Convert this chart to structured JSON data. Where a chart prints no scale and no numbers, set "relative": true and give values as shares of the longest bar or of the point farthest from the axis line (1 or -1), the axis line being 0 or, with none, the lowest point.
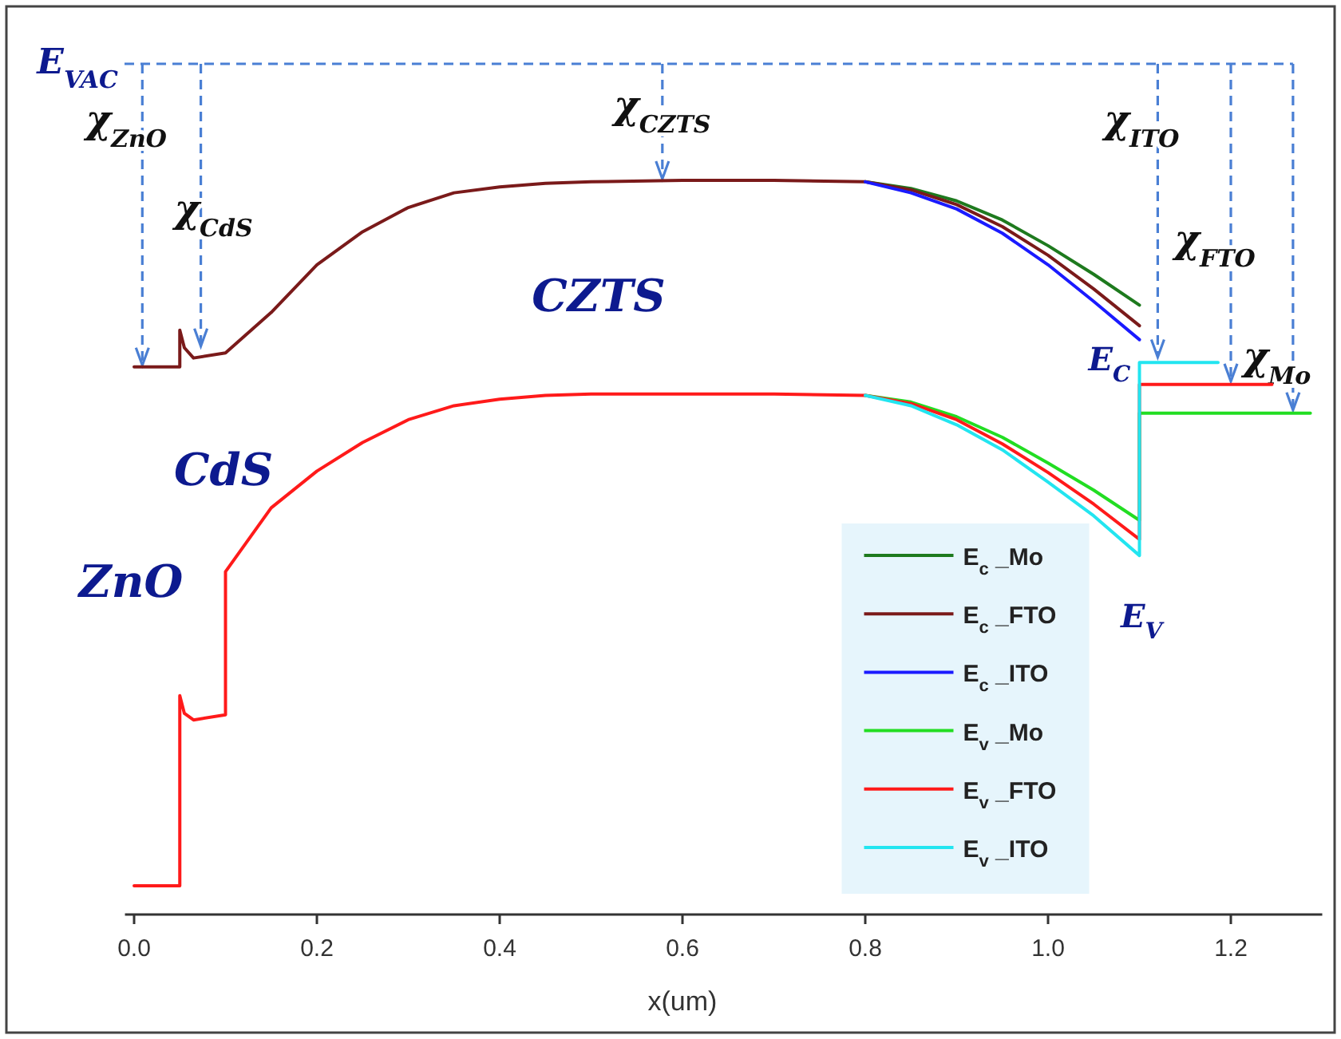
{
  "chart_data": {
    "type": "line",
    "relative": true,
    "xlabel": "x(um)",
    "xlim": [
      -0.01,
      1.3
    ],
    "xticks": [
      {
        "value": 0,
        "label": "0.0"
      },
      0.2,
      0.4,
      0.6,
      0.8,
      {
        "value": 1,
        "label": "1.0"
      },
      1.2
    ],
    "legend": "bottom right",
    "marker": "none",
    "line_style": "solid",
    "grid": false,
    "series": [
      {
        "name": "E$_{c}$ _Mo",
        "color": "#1e7a1e",
        "x": [
          0.8,
          0.85,
          0.9,
          0.95,
          1.0,
          1.05,
          1.1
        ],
        "values": [
          0.998,
          0.989,
          0.972,
          0.946,
          0.911,
          0.872,
          0.83
        ]
      },
      {
        "name": "E$_{c}$ _FTO",
        "color": "#7a1a1a",
        "x": [
          0,
          0.05,
          0.05,
          0.055,
          0.065,
          0.1,
          0.15,
          0.2,
          0.25,
          0.3,
          0.35,
          0.4,
          0.45,
          0.5,
          0.6,
          0.7,
          0.8,
          0.85,
          0.9,
          0.95,
          1.0,
          1.05,
          1.1
        ],
        "values": [
          0.746,
          0.746,
          0.796,
          0.772,
          0.758,
          0.765,
          0.82,
          0.885,
          0.93,
          0.963,
          0.983,
          0.991,
          0.996,
          0.998,
          1.0,
          1.0,
          0.998,
          0.987,
          0.967,
          0.937,
          0.898,
          0.852,
          0.802
        ]
      },
      {
        "name": "E$_{c}$ _ITO",
        "color": "#1a1aff",
        "x": [
          0.8,
          0.85,
          0.9,
          0.95,
          1.0,
          1.05,
          1.1
        ],
        "values": [
          0.998,
          0.983,
          0.961,
          0.928,
          0.885,
          0.835,
          0.783
        ]
      },
      {
        "name": "E$_{v}$ _Mo",
        "color": "#22dd22",
        "x": [
          0.8,
          0.85,
          0.9,
          0.95,
          1.0,
          1.05,
          1.1,
          1.1,
          1.287
        ],
        "values": [
          0.707,
          0.698,
          0.678,
          0.65,
          0.615,
          0.578,
          0.537,
          0.683,
          0.683
        ]
      },
      {
        "name": "E$_{v}$ _FTO",
        "color": "#ff1a1a",
        "x": [
          0,
          0.05,
          0.05,
          0.055,
          0.065,
          0.1,
          0.1,
          0.15,
          0.2,
          0.25,
          0.3,
          0.35,
          0.4,
          0.45,
          0.5,
          0.6,
          0.7,
          0.8,
          0.85,
          0.9,
          0.95,
          1.0,
          1.05,
          1.1,
          1.1,
          1.245
        ],
        "values": [
          0.039,
          0.039,
          0.298,
          0.274,
          0.265,
          0.272,
          0.467,
          0.554,
          0.604,
          0.643,
          0.674,
          0.693,
          0.702,
          0.707,
          0.709,
          0.709,
          0.709,
          0.707,
          0.696,
          0.674,
          0.641,
          0.602,
          0.559,
          0.511,
          0.722,
          0.722
        ]
      },
      {
        "name": "E$_{v}$ _ITO",
        "color": "#22e5f0",
        "x": [
          0.8,
          0.85,
          0.9,
          0.95,
          1.0,
          1.05,
          1.1,
          1.1,
          1.186
        ],
        "values": [
          0.707,
          0.693,
          0.667,
          0.633,
          0.589,
          0.543,
          0.489,
          0.752,
          0.752
        ]
      }
    ],
    "annotations": [
      "E$_{VAC}$",
      "CZTS",
      "CdS",
      "ZnO",
      "E$_{C}$",
      "E$_{V}$",
      {
        "text": "χ$_{ZnO}$",
        "x": 0.009,
        "y": 0.746
      },
      {
        "text": "χ$_{CdS}$",
        "x": 0.073,
        "y": 0.772
      },
      {
        "text": "χ$_{CZTS}$",
        "x": 0.578,
        "y": 1.0
      },
      {
        "text": "χ$_{ITO}$",
        "x": 1.12,
        "y": 0.757
      },
      {
        "text": "χ$_{FTO}$",
        "x": 1.2,
        "y": 0.724
      },
      {
        "text": "χ$_{Mo}$",
        "x": 1.268,
        "y": 0.685
      }
    ]
  }
}
